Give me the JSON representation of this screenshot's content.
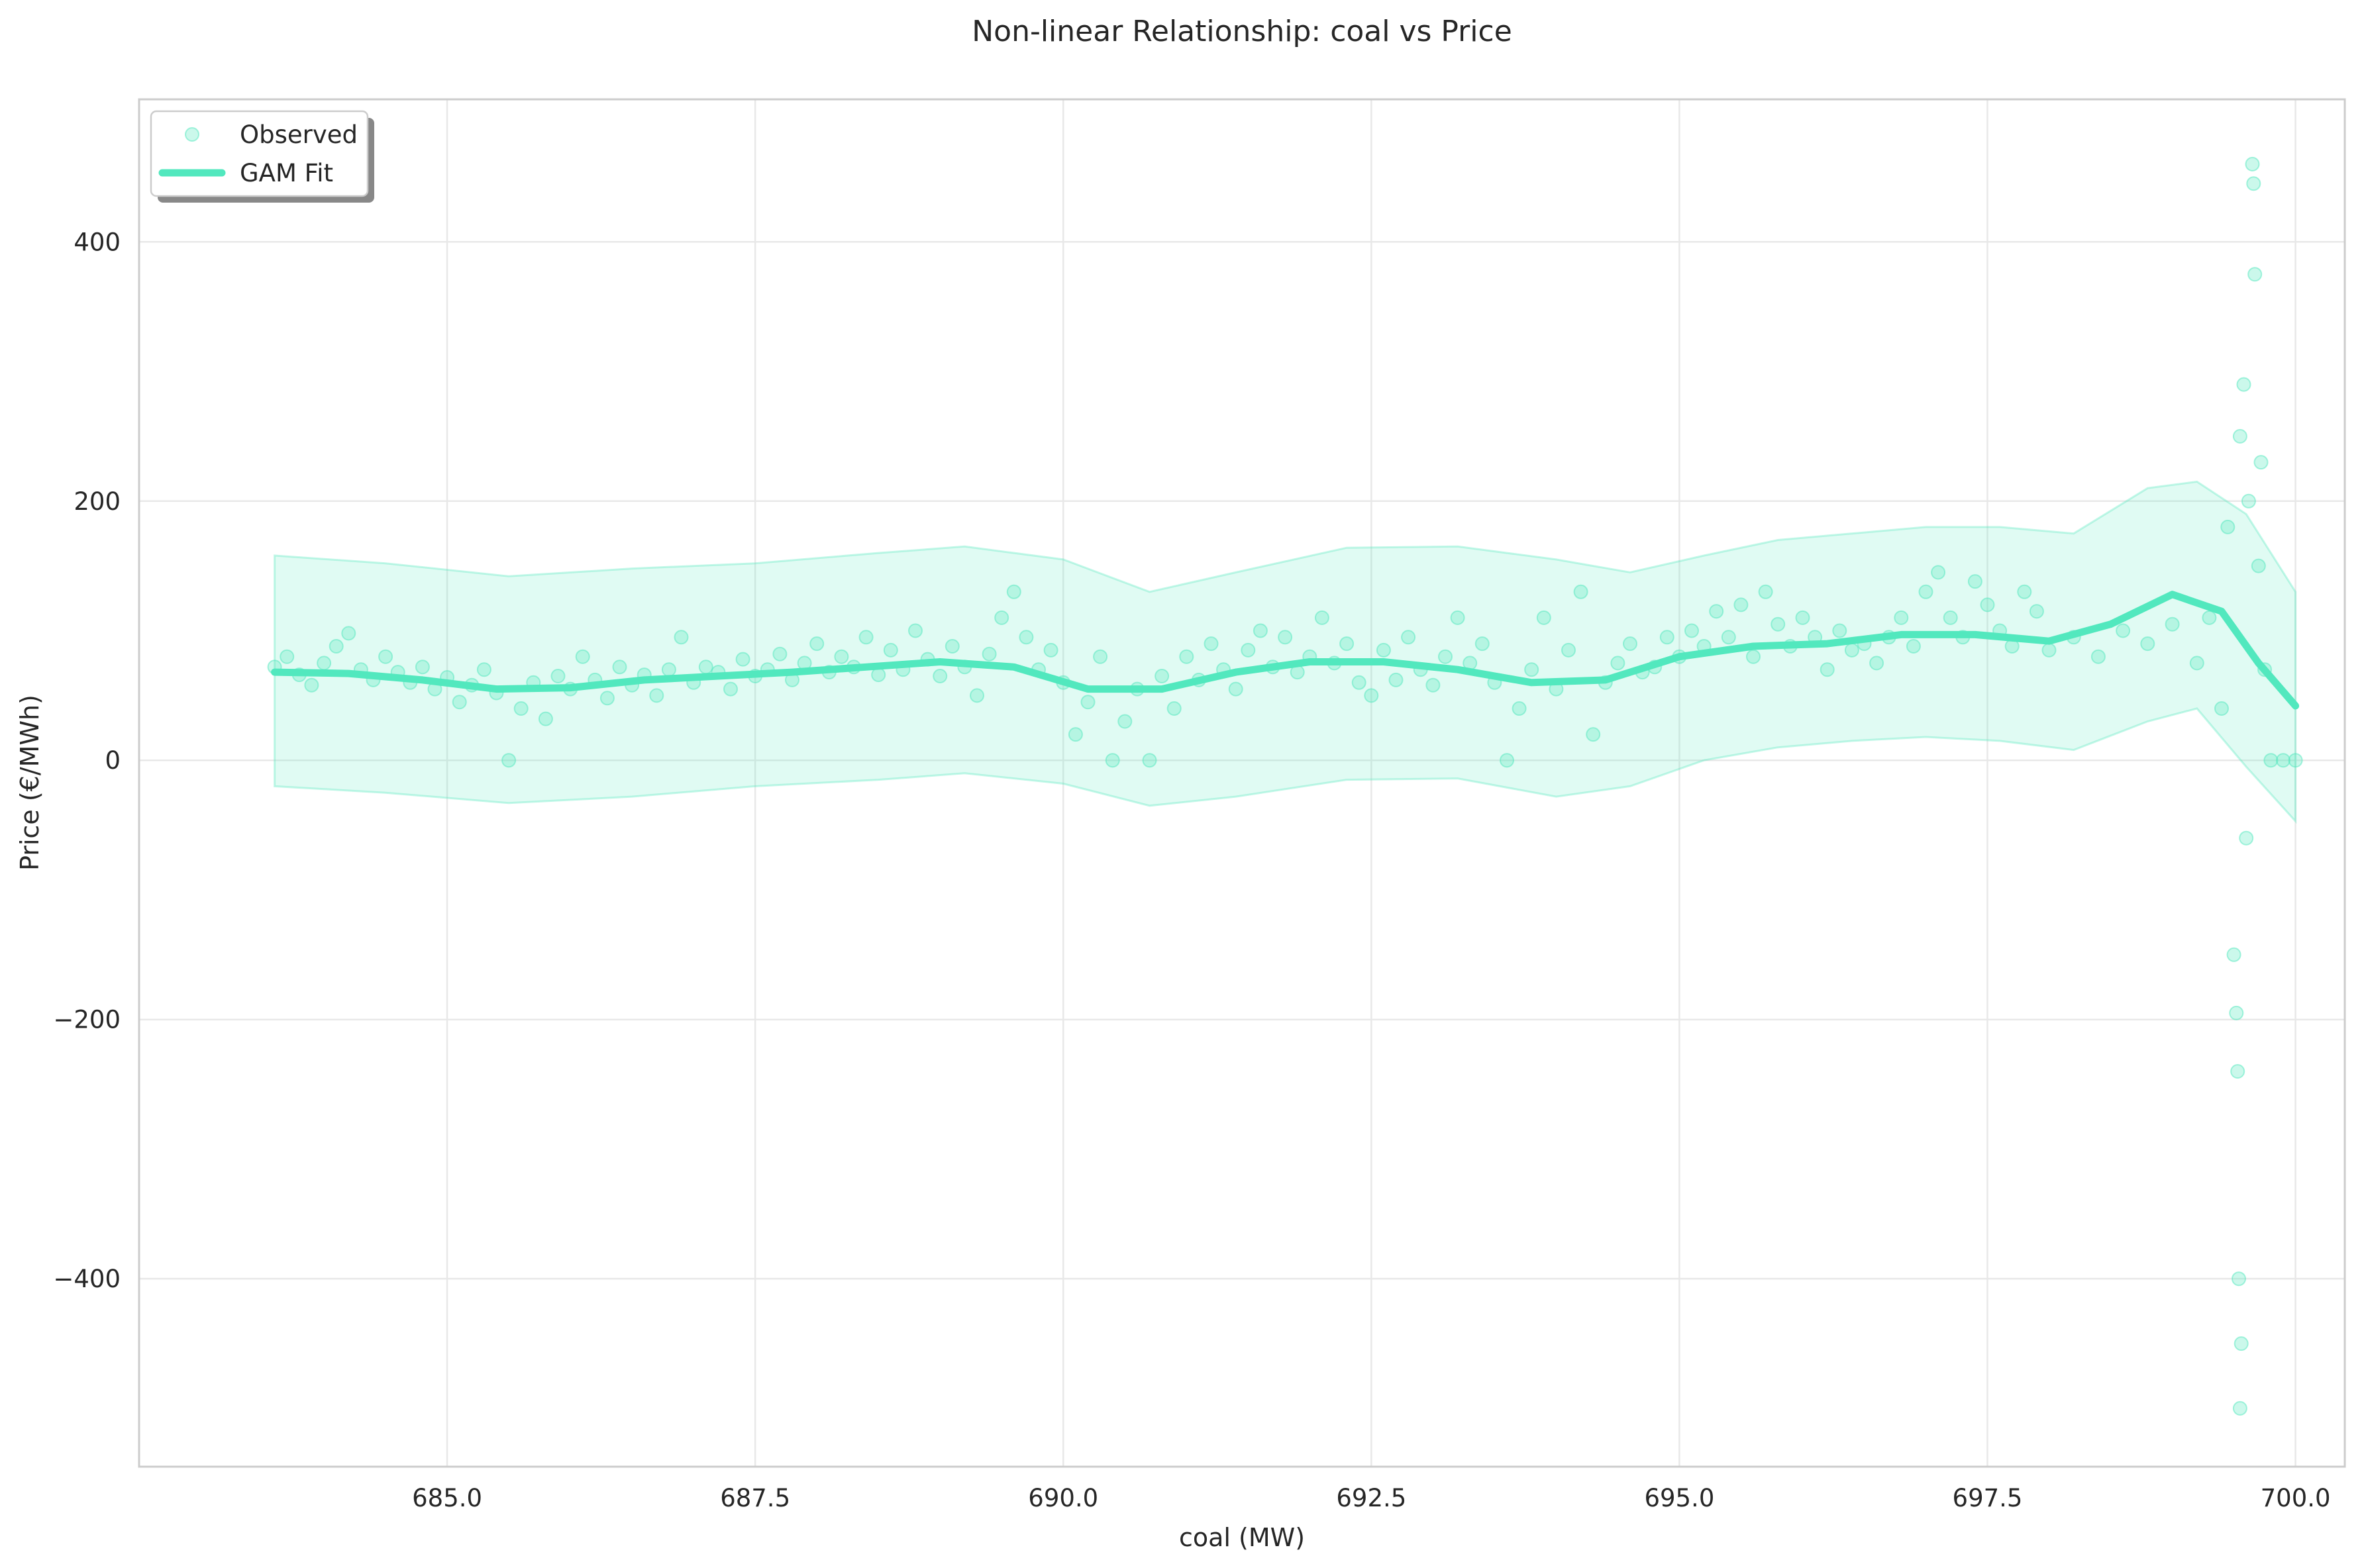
{
  "chart_data": {
    "type": "scatter",
    "title": "Non-linear Relationship: coal vs Price",
    "xlabel": "coal (MW)",
    "ylabel": "Price (€/MWh)",
    "xlim": [
      682.5,
      700.4
    ],
    "ylim": [
      -545,
      510
    ],
    "x_ticks": [
      685.0,
      687.5,
      690.0,
      692.5,
      695.0,
      697.5,
      700.0
    ],
    "x_tick_labels": [
      "685.0",
      "687.5",
      "690.0",
      "692.5",
      "695.0",
      "697.5",
      "700.0"
    ],
    "y_ticks": [
      -400,
      -200,
      0,
      200,
      400
    ],
    "y_tick_labels": [
      "−400",
      "−200",
      "0",
      "200",
      "400"
    ],
    "grid": true,
    "legend_position": "top-left",
    "color": "#52e8be",
    "series": [
      {
        "name": "Observed",
        "kind": "scatter",
        "points": [
          [
            683.6,
            72
          ],
          [
            683.7,
            80
          ],
          [
            683.8,
            66
          ],
          [
            683.9,
            58
          ],
          [
            684.0,
            75
          ],
          [
            684.1,
            88
          ],
          [
            684.2,
            98
          ],
          [
            684.3,
            70
          ],
          [
            684.4,
            62
          ],
          [
            684.5,
            80
          ],
          [
            684.6,
            68
          ],
          [
            684.7,
            60
          ],
          [
            684.8,
            72
          ],
          [
            684.9,
            55
          ],
          [
            685.0,
            64
          ],
          [
            685.1,
            45
          ],
          [
            685.2,
            58
          ],
          [
            685.3,
            70
          ],
          [
            685.4,
            52
          ],
          [
            685.5,
            0
          ],
          [
            685.6,
            40
          ],
          [
            685.7,
            60
          ],
          [
            685.8,
            32
          ],
          [
            685.9,
            65
          ],
          [
            686.0,
            55
          ],
          [
            686.1,
            80
          ],
          [
            686.2,
            62
          ],
          [
            686.3,
            48
          ],
          [
            686.4,
            72
          ],
          [
            686.5,
            58
          ],
          [
            686.6,
            66
          ],
          [
            686.7,
            50
          ],
          [
            686.8,
            70
          ],
          [
            686.9,
            95
          ],
          [
            687.0,
            60
          ],
          [
            687.1,
            72
          ],
          [
            687.2,
            68
          ],
          [
            687.3,
            55
          ],
          [
            687.4,
            78
          ],
          [
            687.5,
            65
          ],
          [
            687.6,
            70
          ],
          [
            687.7,
            82
          ],
          [
            687.8,
            62
          ],
          [
            687.9,
            75
          ],
          [
            688.0,
            90
          ],
          [
            688.1,
            68
          ],
          [
            688.2,
            80
          ],
          [
            688.3,
            72
          ],
          [
            688.4,
            95
          ],
          [
            688.5,
            66
          ],
          [
            688.6,
            85
          ],
          [
            688.7,
            70
          ],
          [
            688.8,
            100
          ],
          [
            688.9,
            78
          ],
          [
            689.0,
            65
          ],
          [
            689.1,
            88
          ],
          [
            689.2,
            72
          ],
          [
            689.3,
            50
          ],
          [
            689.4,
            82
          ],
          [
            689.5,
            110
          ],
          [
            689.6,
            130
          ],
          [
            689.7,
            95
          ],
          [
            689.8,
            70
          ],
          [
            689.9,
            85
          ],
          [
            690.0,
            60
          ],
          [
            690.1,
            20
          ],
          [
            690.2,
            45
          ],
          [
            690.3,
            80
          ],
          [
            690.4,
            0
          ],
          [
            690.5,
            30
          ],
          [
            690.6,
            55
          ],
          [
            690.7,
            0
          ],
          [
            690.8,
            65
          ],
          [
            690.9,
            40
          ],
          [
            691.0,
            80
          ],
          [
            691.1,
            62
          ],
          [
            691.2,
            90
          ],
          [
            691.3,
            70
          ],
          [
            691.4,
            55
          ],
          [
            691.5,
            85
          ],
          [
            691.6,
            100
          ],
          [
            691.7,
            72
          ],
          [
            691.8,
            95
          ],
          [
            691.9,
            68
          ],
          [
            692.0,
            80
          ],
          [
            692.1,
            110
          ],
          [
            692.2,
            75
          ],
          [
            692.3,
            90
          ],
          [
            692.4,
            60
          ],
          [
            692.5,
            50
          ],
          [
            692.6,
            85
          ],
          [
            692.7,
            62
          ],
          [
            692.8,
            95
          ],
          [
            692.9,
            70
          ],
          [
            693.0,
            58
          ],
          [
            693.1,
            80
          ],
          [
            693.2,
            110
          ],
          [
            693.3,
            75
          ],
          [
            693.4,
            90
          ],
          [
            693.5,
            60
          ],
          [
            693.6,
            0
          ],
          [
            693.7,
            40
          ],
          [
            693.8,
            70
          ],
          [
            693.9,
            110
          ],
          [
            694.0,
            55
          ],
          [
            694.1,
            85
          ],
          [
            694.2,
            130
          ],
          [
            694.3,
            20
          ],
          [
            694.4,
            60
          ],
          [
            694.5,
            75
          ],
          [
            694.6,
            90
          ],
          [
            694.7,
            68
          ],
          [
            694.8,
            72
          ],
          [
            694.9,
            95
          ],
          [
            695.0,
            80
          ],
          [
            695.1,
            100
          ],
          [
            695.2,
            88
          ],
          [
            695.3,
            115
          ],
          [
            695.4,
            95
          ],
          [
            695.5,
            120
          ],
          [
            695.6,
            80
          ],
          [
            695.7,
            130
          ],
          [
            695.8,
            105
          ],
          [
            695.9,
            88
          ],
          [
            696.0,
            110
          ],
          [
            696.1,
            95
          ],
          [
            696.2,
            70
          ],
          [
            696.3,
            100
          ],
          [
            696.4,
            85
          ],
          [
            696.5,
            90
          ],
          [
            696.6,
            75
          ],
          [
            696.7,
            95
          ],
          [
            696.8,
            110
          ],
          [
            696.9,
            88
          ],
          [
            697.0,
            130
          ],
          [
            697.1,
            145
          ],
          [
            697.2,
            110
          ],
          [
            697.3,
            95
          ],
          [
            697.4,
            138
          ],
          [
            697.5,
            120
          ],
          [
            697.6,
            100
          ],
          [
            697.7,
            88
          ],
          [
            697.8,
            130
          ],
          [
            697.9,
            115
          ],
          [
            698.0,
            85
          ],
          [
            698.2,
            95
          ],
          [
            698.4,
            80
          ],
          [
            698.6,
            100
          ],
          [
            698.8,
            90
          ],
          [
            699.0,
            105
          ],
          [
            699.2,
            75
          ],
          [
            699.3,
            110
          ],
          [
            699.4,
            40
          ],
          [
            699.45,
            180
          ],
          [
            699.5,
            -150
          ],
          [
            699.55,
            250
          ],
          [
            699.6,
            -60
          ],
          [
            699.62,
            200
          ],
          [
            699.65,
            460
          ],
          [
            699.66,
            445
          ],
          [
            699.67,
            375
          ],
          [
            699.7,
            150
          ],
          [
            699.75,
            70
          ],
          [
            699.54,
            -400
          ],
          [
            699.56,
            -450
          ],
          [
            699.55,
            -500
          ],
          [
            699.53,
            -240
          ],
          [
            699.52,
            -195
          ],
          [
            699.58,
            290
          ],
          [
            699.72,
            230
          ],
          [
            699.8,
            0
          ],
          [
            699.9,
            0
          ],
          [
            700.0,
            0
          ]
        ]
      },
      {
        "name": "GAM Fit",
        "kind": "line",
        "x": [
          683.6,
          684.2,
          684.8,
          685.4,
          686.0,
          686.6,
          687.2,
          687.8,
          688.4,
          689.0,
          689.6,
          690.2,
          690.8,
          691.4,
          692.0,
          692.6,
          693.2,
          693.8,
          694.4,
          695.0,
          695.6,
          696.2,
          696.8,
          697.4,
          698.0,
          698.5,
          699.0,
          699.4,
          699.7,
          700.0
        ],
        "y": [
          68,
          67,
          62,
          55,
          56,
          62,
          65,
          68,
          72,
          76,
          72,
          55,
          55,
          68,
          76,
          76,
          70,
          60,
          62,
          80,
          88,
          90,
          97,
          97,
          92,
          105,
          128,
          115,
          75,
          42
        ]
      },
      {
        "name": "",
        "kind": "band",
        "x": [
          683.6,
          684.5,
          685.5,
          686.5,
          687.5,
          688.5,
          689.2,
          690.0,
          690.7,
          691.4,
          692.3,
          693.2,
          694.0,
          694.6,
          695.2,
          695.8,
          696.4,
          697.0,
          697.6,
          698.2,
          698.8,
          699.2,
          699.6,
          700.0
        ],
        "upper": [
          158,
          152,
          142,
          148,
          152,
          160,
          165,
          155,
          130,
          145,
          164,
          165,
          155,
          145,
          158,
          170,
          175,
          180,
          180,
          175,
          210,
          215,
          190,
          130
        ],
        "lower": [
          -20,
          -25,
          -33,
          -28,
          -20,
          -15,
          -10,
          -18,
          -35,
          -28,
          -15,
          -14,
          -28,
          -20,
          0,
          10,
          15,
          18,
          15,
          8,
          30,
          40,
          -5,
          -47
        ]
      }
    ]
  }
}
